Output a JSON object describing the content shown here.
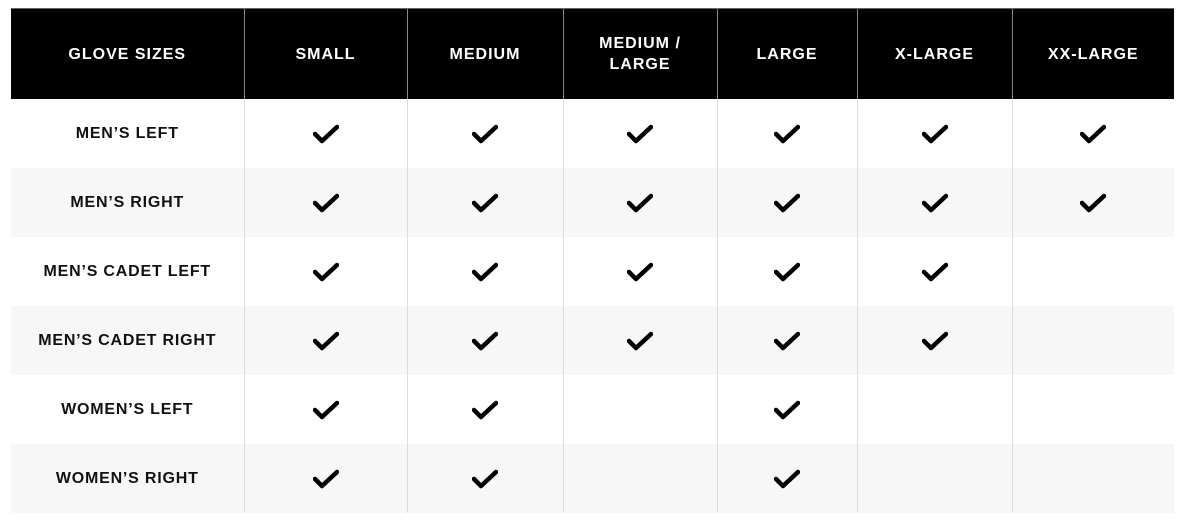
{
  "table": {
    "headers": [
      "GLOVE SIZES",
      "SMALL",
      "MEDIUM",
      "MEDIUM / LARGE",
      "LARGE",
      "X-LARGE",
      "XX-LARGE"
    ],
    "rows": [
      {
        "label": "MEN’S LEFT",
        "available": [
          true,
          true,
          true,
          true,
          true,
          true
        ]
      },
      {
        "label": "MEN’S RIGHT",
        "available": [
          true,
          true,
          true,
          true,
          true,
          true
        ]
      },
      {
        "label": "MEN’S CADET LEFT",
        "available": [
          true,
          true,
          true,
          true,
          true,
          false
        ]
      },
      {
        "label": "MEN’S CADET RIGHT",
        "available": [
          true,
          true,
          true,
          true,
          true,
          false
        ]
      },
      {
        "label": "WOMEN’S LEFT",
        "available": [
          true,
          true,
          false,
          true,
          false,
          false
        ]
      },
      {
        "label": "WOMEN’S RIGHT",
        "available": [
          true,
          true,
          false,
          true,
          false,
          false
        ]
      }
    ],
    "check_icon": "checkmark-icon"
  }
}
